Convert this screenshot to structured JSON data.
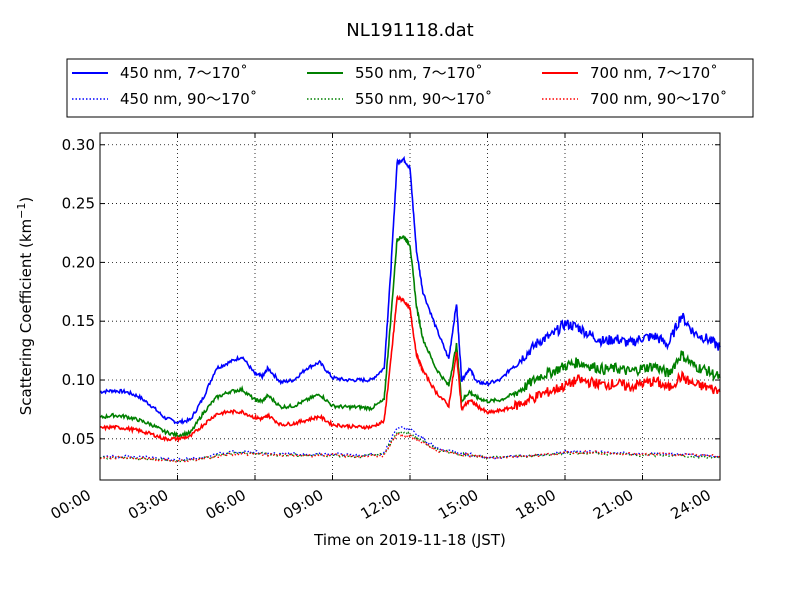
{
  "chart_data": {
    "type": "line",
    "title": "NL191118.dat",
    "xlabel": "Time on 2019-11-18 (JST)",
    "ylabel": "Scattering Coefficient (km",
    "ylabel_sup": "−1",
    "ylabel_close": ")",
    "x_unit": "hours",
    "xlim": [
      0,
      24
    ],
    "ylim": [
      0.015,
      0.31
    ],
    "x_ticks": [
      {
        "v": 0,
        "label": "00:00"
      },
      {
        "v": 3,
        "label": "03:00"
      },
      {
        "v": 6,
        "label": "06:00"
      },
      {
        "v": 9,
        "label": "09:00"
      },
      {
        "v": 12,
        "label": "12:00"
      },
      {
        "v": 15,
        "label": "15:00"
      },
      {
        "v": 18,
        "label": "18:00"
      },
      {
        "v": 21,
        "label": "21:00"
      },
      {
        "v": 24,
        "label": "24:00"
      }
    ],
    "y_ticks": [
      {
        "v": 0.05,
        "label": "0.05"
      },
      {
        "v": 0.1,
        "label": "0.10"
      },
      {
        "v": 0.15,
        "label": "0.15"
      },
      {
        "v": 0.2,
        "label": "0.20"
      },
      {
        "v": 0.25,
        "label": "0.25"
      },
      {
        "v": 0.3,
        "label": "0.30"
      }
    ],
    "grid": true,
    "legend_position": "top",
    "series": [
      {
        "name": "450 nm, 7～170˚",
        "color": "#0000ff",
        "style": "solid",
        "x": [
          0,
          0.5,
          1,
          1.5,
          2,
          2.5,
          3,
          3.5,
          4,
          4.5,
          5,
          5.5,
          6,
          6.3,
          6.5,
          7,
          7.5,
          8,
          8.5,
          9,
          9.5,
          10,
          10.5,
          11,
          11.25,
          11.5,
          11.75,
          12,
          12.25,
          12.5,
          13,
          13.5,
          13.8,
          14,
          14.3,
          14.6,
          15,
          15.5,
          16,
          16.5,
          17,
          17.5,
          18,
          18.5,
          19,
          19.5,
          20,
          20.5,
          21,
          21.5,
          22,
          22.5,
          23,
          23.5,
          24
        ],
        "y": [
          0.09,
          0.091,
          0.09,
          0.086,
          0.078,
          0.068,
          0.064,
          0.066,
          0.085,
          0.11,
          0.115,
          0.12,
          0.105,
          0.103,
          0.11,
          0.098,
          0.1,
          0.11,
          0.115,
          0.102,
          0.1,
          0.1,
          0.1,
          0.11,
          0.19,
          0.285,
          0.288,
          0.28,
          0.21,
          0.175,
          0.145,
          0.118,
          0.165,
          0.1,
          0.11,
          0.098,
          0.097,
          0.1,
          0.112,
          0.122,
          0.133,
          0.138,
          0.148,
          0.145,
          0.138,
          0.133,
          0.135,
          0.131,
          0.136,
          0.137,
          0.13,
          0.155,
          0.14,
          0.135,
          0.128
        ]
      },
      {
        "name": "550 nm, 7～170˚",
        "color": "#008000",
        "style": "solid",
        "x": [
          0,
          0.5,
          1,
          1.5,
          2,
          2.5,
          3,
          3.5,
          4,
          4.5,
          5,
          5.5,
          6,
          6.3,
          6.5,
          7,
          7.5,
          8,
          8.5,
          9,
          9.5,
          10,
          10.5,
          11,
          11.25,
          11.5,
          11.75,
          12,
          12.25,
          12.5,
          13,
          13.5,
          13.8,
          14,
          14.3,
          14.6,
          15,
          15.5,
          16,
          16.5,
          17,
          17.5,
          18,
          18.5,
          19,
          19.5,
          20,
          20.5,
          21,
          21.5,
          22,
          22.5,
          23,
          23.5,
          24
        ],
        "y": [
          0.068,
          0.07,
          0.069,
          0.066,
          0.062,
          0.056,
          0.053,
          0.055,
          0.072,
          0.085,
          0.09,
          0.092,
          0.083,
          0.082,
          0.087,
          0.077,
          0.078,
          0.083,
          0.088,
          0.078,
          0.077,
          0.077,
          0.076,
          0.083,
          0.15,
          0.22,
          0.222,
          0.215,
          0.163,
          0.135,
          0.11,
          0.095,
          0.13,
          0.082,
          0.09,
          0.085,
          0.082,
          0.083,
          0.088,
          0.095,
          0.103,
          0.107,
          0.112,
          0.115,
          0.112,
          0.109,
          0.11,
          0.107,
          0.11,
          0.112,
          0.105,
          0.122,
          0.112,
          0.108,
          0.102
        ]
      },
      {
        "name": "700 nm, 7～170˚",
        "color": "#ff0000",
        "style": "solid",
        "x": [
          0,
          0.5,
          1,
          1.5,
          2,
          2.5,
          3,
          3.5,
          4,
          4.5,
          5,
          5.5,
          6,
          6.3,
          6.5,
          7,
          7.5,
          8,
          8.5,
          9,
          9.5,
          10,
          10.5,
          11,
          11.25,
          11.5,
          11.75,
          12,
          12.25,
          12.5,
          13,
          13.5,
          13.8,
          14,
          14.3,
          14.6,
          15,
          15.5,
          16,
          16.5,
          17,
          17.5,
          18,
          18.5,
          19,
          19.5,
          20,
          20.5,
          21,
          21.5,
          22,
          22.5,
          23,
          23.5,
          24
        ],
        "y": [
          0.059,
          0.06,
          0.059,
          0.057,
          0.054,
          0.05,
          0.05,
          0.052,
          0.062,
          0.071,
          0.073,
          0.073,
          0.068,
          0.067,
          0.07,
          0.062,
          0.063,
          0.066,
          0.069,
          0.062,
          0.061,
          0.06,
          0.06,
          0.065,
          0.115,
          0.17,
          0.168,
          0.16,
          0.122,
          0.108,
          0.09,
          0.078,
          0.123,
          0.075,
          0.083,
          0.078,
          0.072,
          0.074,
          0.077,
          0.082,
          0.087,
          0.091,
          0.095,
          0.1,
          0.098,
          0.096,
          0.097,
          0.094,
          0.097,
          0.099,
          0.093,
          0.103,
          0.096,
          0.094,
          0.09
        ]
      },
      {
        "name": "450 nm, 90～170˚",
        "color": "#0000ff",
        "style": "dotted",
        "x": [
          0,
          1,
          2,
          3,
          4,
          5,
          6,
          7,
          8,
          9,
          10,
          11,
          11.5,
          12,
          12.5,
          13,
          14,
          14.5,
          15,
          16,
          17,
          18,
          19,
          20,
          21,
          22,
          23,
          24
        ],
        "y": [
          0.035,
          0.035,
          0.034,
          0.032,
          0.034,
          0.039,
          0.039,
          0.037,
          0.037,
          0.037,
          0.036,
          0.038,
          0.06,
          0.058,
          0.05,
          0.042,
          0.038,
          0.036,
          0.034,
          0.035,
          0.036,
          0.039,
          0.039,
          0.038,
          0.037,
          0.037,
          0.036,
          0.034
        ]
      },
      {
        "name": "550 nm, 90～170˚",
        "color": "#008000",
        "style": "dotted",
        "x": [
          0,
          1,
          2,
          3,
          4,
          5,
          6,
          7,
          8,
          9,
          10,
          11,
          11.5,
          12,
          12.5,
          13,
          14,
          14.5,
          15,
          16,
          17,
          18,
          19,
          20,
          21,
          22,
          23,
          24
        ],
        "y": [
          0.034,
          0.034,
          0.033,
          0.031,
          0.033,
          0.038,
          0.038,
          0.036,
          0.036,
          0.036,
          0.035,
          0.037,
          0.056,
          0.054,
          0.048,
          0.041,
          0.037,
          0.035,
          0.034,
          0.035,
          0.036,
          0.038,
          0.038,
          0.037,
          0.036,
          0.036,
          0.035,
          0.034
        ]
      },
      {
        "name": "700 nm, 90～170˚",
        "color": "#ff0000",
        "style": "dotted",
        "x": [
          0,
          1,
          2,
          3,
          4,
          5,
          6,
          7,
          8,
          9,
          10,
          11,
          11.5,
          12,
          12.5,
          13,
          14,
          14.5,
          15,
          16,
          17,
          18,
          19,
          20,
          21,
          22,
          23,
          24
        ],
        "y": [
          0.034,
          0.034,
          0.033,
          0.031,
          0.033,
          0.037,
          0.037,
          0.036,
          0.036,
          0.036,
          0.035,
          0.036,
          0.054,
          0.052,
          0.047,
          0.04,
          0.037,
          0.035,
          0.034,
          0.035,
          0.036,
          0.038,
          0.039,
          0.037,
          0.037,
          0.037,
          0.036,
          0.035
        ]
      }
    ]
  }
}
